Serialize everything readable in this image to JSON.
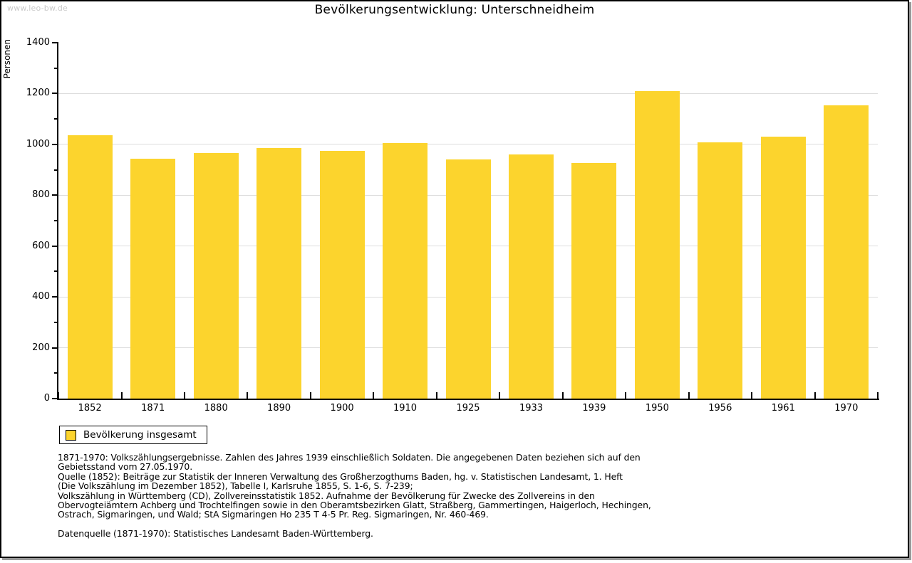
{
  "watermark": "www.leo-bw.de",
  "title": "Bevölkerungsentwicklung: Unterschneidheim",
  "chart_data": {
    "type": "bar",
    "title": "Bevölkerungsentwicklung: Unterschneidheim",
    "xlabel": "",
    "ylabel": "Personen",
    "categories": [
      "1852",
      "1871",
      "1880",
      "1890",
      "1900",
      "1910",
      "1925",
      "1933",
      "1939",
      "1950",
      "1956",
      "1961",
      "1970"
    ],
    "values": [
      1035,
      945,
      965,
      985,
      975,
      1005,
      940,
      960,
      927,
      1211,
      1007,
      1030,
      1153
    ],
    "series_name": "Bevölkerung insgesamt",
    "ylim": [
      0,
      1400
    ],
    "ytick_step": 200,
    "yminor_step": 100,
    "grid": "horizontal-major-only",
    "bar_color": "#FCD42D",
    "legend_position": "bottom-left"
  },
  "legend": {
    "label": "Bevölkerung insgesamt"
  },
  "footnotes": {
    "lines": [
      "1871-1970: Volkszählungsergebnisse. Zahlen des Jahres 1939 einschließlich Soldaten. Die angegebenen Daten beziehen sich auf den",
      "Gebietsstand vom 27.05.1970.",
      "Quelle (1852): Beiträge zur Statistik der Inneren Verwaltung des Großherzogthums Baden, hg. v. Statistischen Landesamt, 1. Heft",
      "(Die Volkszählung im Dezember 1852), Tabelle I, Karlsruhe 1855, S. 1-6, S. 7-239;",
      "Volkszählung in Württemberg (CD), Zollvereinsstatistik 1852. Aufnahme der Bevölkerung für Zwecke des Zollvereins in den",
      "Obervogteiämtern Achberg und Trochtelfingen sowie in den Oberamtsbezirken Glatt, Straßberg, Gammertingen, Haigerloch, Hechingen,",
      "Ostrach, Sigmaringen, und Wald; StA Sigmaringen Ho 235 T 4-5 Pr. Reg. Sigmaringen, Nr. 460-469."
    ],
    "source_line": "Datenquelle (1871-1970): Statistisches Landesamt Baden-Württemberg."
  },
  "colors": {
    "bar": "#FCD42D",
    "grid": "#DDDDDD",
    "axis": "#000000",
    "text": "#000000",
    "watermark": "#C9C9C9",
    "frame_border": "#000000",
    "frame_shadow": "#999999"
  }
}
